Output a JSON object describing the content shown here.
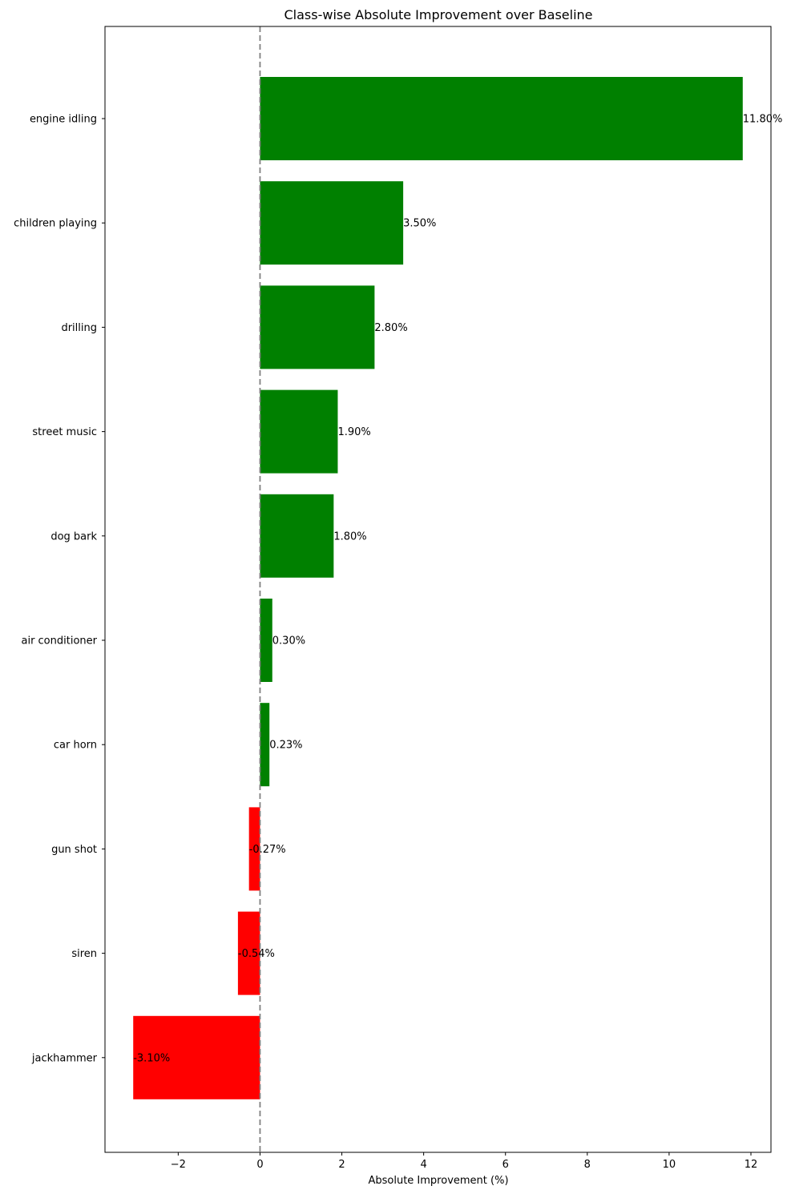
{
  "chart_data": {
    "type": "bar",
    "orientation": "horizontal",
    "title": "Class-wise Absolute Improvement over Baseline",
    "xlabel": "Absolute Improvement (%)",
    "ylabel": "",
    "categories": [
      "engine idling",
      "children playing",
      "drilling",
      "street music",
      "dog bark",
      "air conditioner",
      "car horn",
      "gun shot",
      "siren",
      "jackhammer"
    ],
    "values": [
      11.8,
      3.5,
      2.8,
      1.9,
      1.8,
      0.3,
      0.23,
      -0.27,
      -0.54,
      -3.1
    ],
    "value_labels": [
      "11.80%",
      "3.50%",
      "2.80%",
      "1.90%",
      "1.80%",
      "0.30%",
      "0.23%",
      "-0.27%",
      "-0.54%",
      "-3.10%"
    ],
    "xlim": [
      -3.79,
      12.49
    ],
    "xticks": [
      -2,
      0,
      2,
      4,
      6,
      8,
      10,
      12
    ],
    "xtick_labels": [
      "−2",
      "0",
      "2",
      "4",
      "6",
      "8",
      "10",
      "12"
    ],
    "reference_line": {
      "x": 0,
      "style": "dashed",
      "color": "#808080"
    },
    "colors": {
      "positive": "#008000",
      "negative": "#ff0000"
    },
    "grid": false,
    "legend": "none"
  }
}
